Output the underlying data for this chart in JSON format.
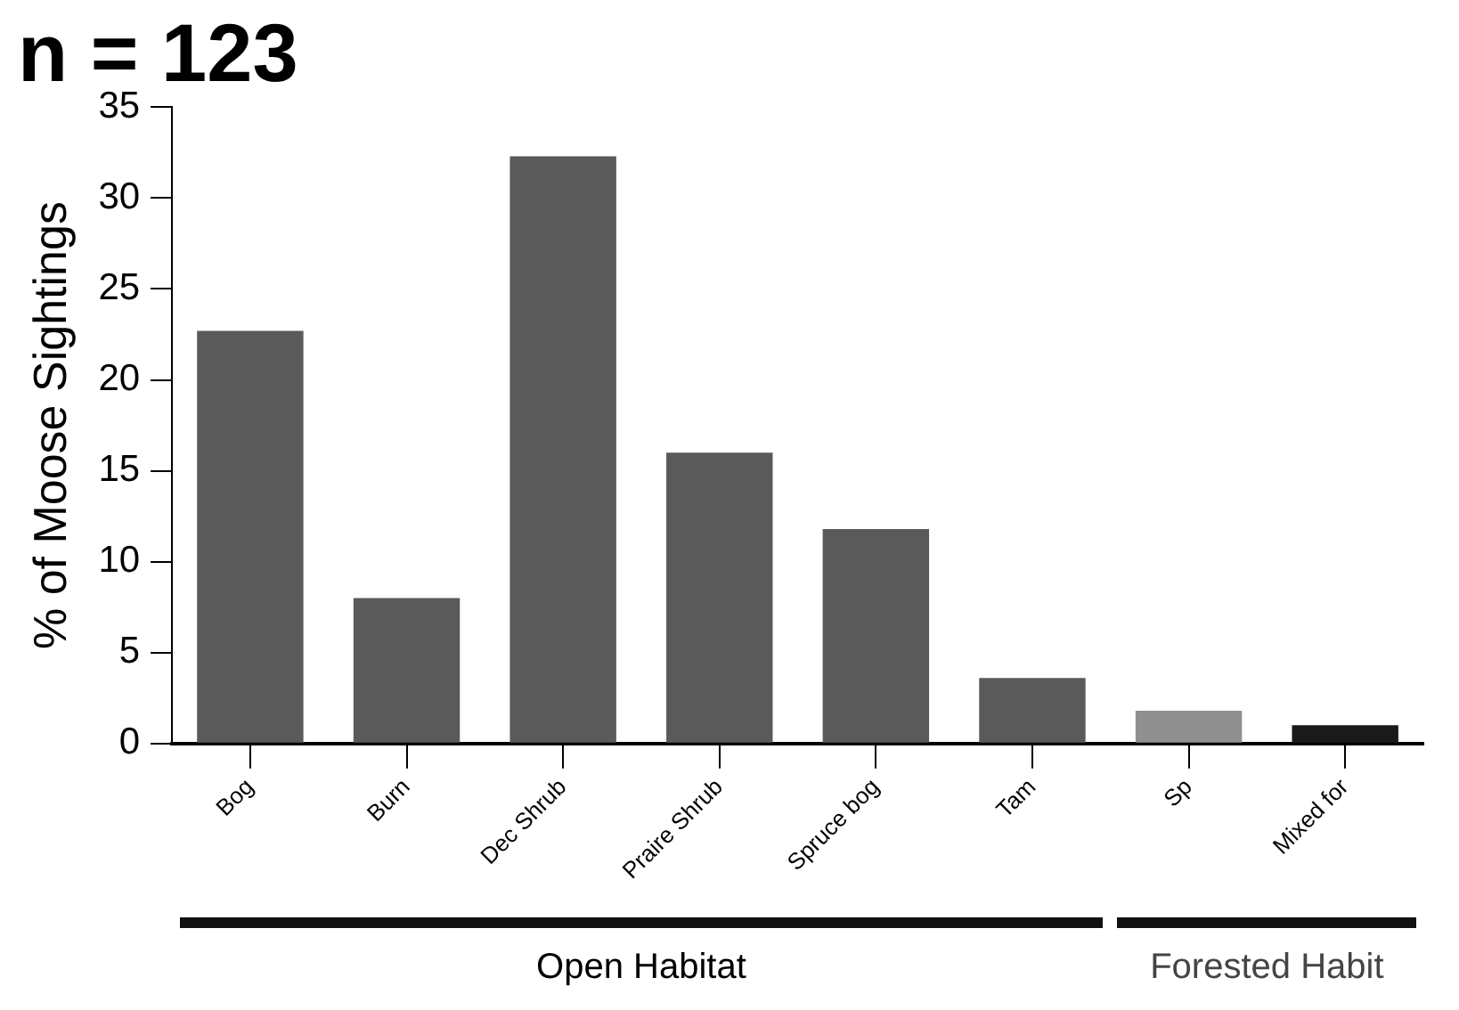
{
  "chart_data": {
    "type": "bar",
    "title": "n = 123",
    "ylabel": "% of Moose Sightings",
    "categories": [
      "Bog",
      "Burn",
      "Dec Shrub",
      "Praire Shrub",
      "Spruce bog",
      "Tam",
      "Sp",
      "Mixed for"
    ],
    "values": [
      22.7,
      8.0,
      32.3,
      16.0,
      11.8,
      3.6,
      1.8,
      1.0
    ],
    "colors": [
      "#5a5a5a",
      "#5a5a5a",
      "#5a5a5a",
      "#5a5a5a",
      "#5a5a5a",
      "#5a5a5a",
      "#8f8f8f",
      "#1a1a1a"
    ],
    "ylim": [
      0,
      35
    ],
    "yticks": [
      0,
      5,
      10,
      15,
      20,
      25,
      30,
      35
    ],
    "grid": false,
    "legend": false,
    "annotations": [
      "Open Habitat",
      "Forested Habit"
    ]
  }
}
